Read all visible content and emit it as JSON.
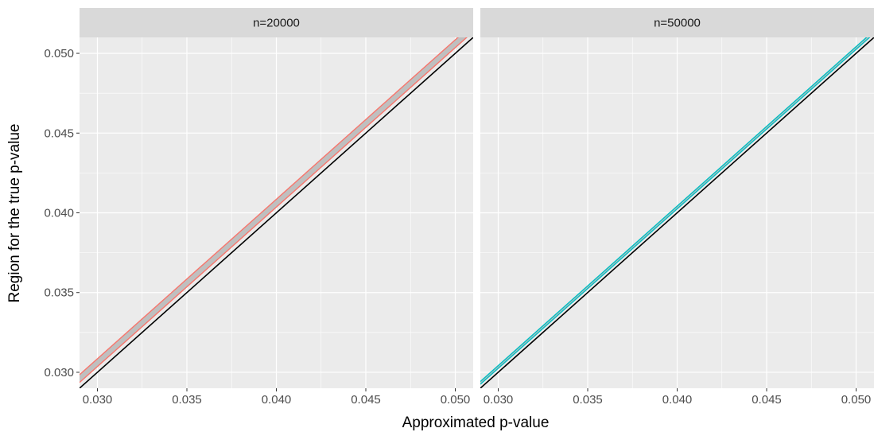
{
  "chart_data": {
    "type": "line",
    "xlabel": "Approximated p-value",
    "ylabel": "Region for the true p-value",
    "xlim": [
      0.029,
      0.051
    ],
    "ylim": [
      0.029,
      0.051
    ],
    "x_ticks": [
      "0.030",
      "0.035",
      "0.040",
      "0.045",
      "0.050"
    ],
    "y_ticks": [
      "0.030",
      "0.035",
      "0.040",
      "0.045",
      "0.050"
    ],
    "x_tick_values": [
      0.03,
      0.035,
      0.04,
      0.045,
      0.05
    ],
    "y_tick_values": [
      0.03,
      0.035,
      0.04,
      0.045,
      0.05
    ],
    "grid": true,
    "panels": [
      {
        "label": "n=20000",
        "color": "#F8766D",
        "band": {
          "x": [
            0.029,
            0.051
          ],
          "lower": [
            0.02936,
            0.05136
          ],
          "upper": [
            0.02985,
            0.05185
          ]
        },
        "reference_line": {
          "x": [
            0.029,
            0.051
          ],
          "y": [
            0.029,
            0.051
          ],
          "color": "#000000"
        }
      },
      {
        "label": "n=50000",
        "color": "#00BFC4",
        "band": {
          "x": [
            0.029,
            0.051
          ],
          "lower": [
            0.02925,
            0.05125
          ],
          "upper": [
            0.02942,
            0.05142
          ]
        },
        "reference_line": {
          "x": [
            0.029,
            0.051
          ],
          "y": [
            0.029,
            0.051
          ],
          "color": "#000000"
        }
      }
    ]
  }
}
